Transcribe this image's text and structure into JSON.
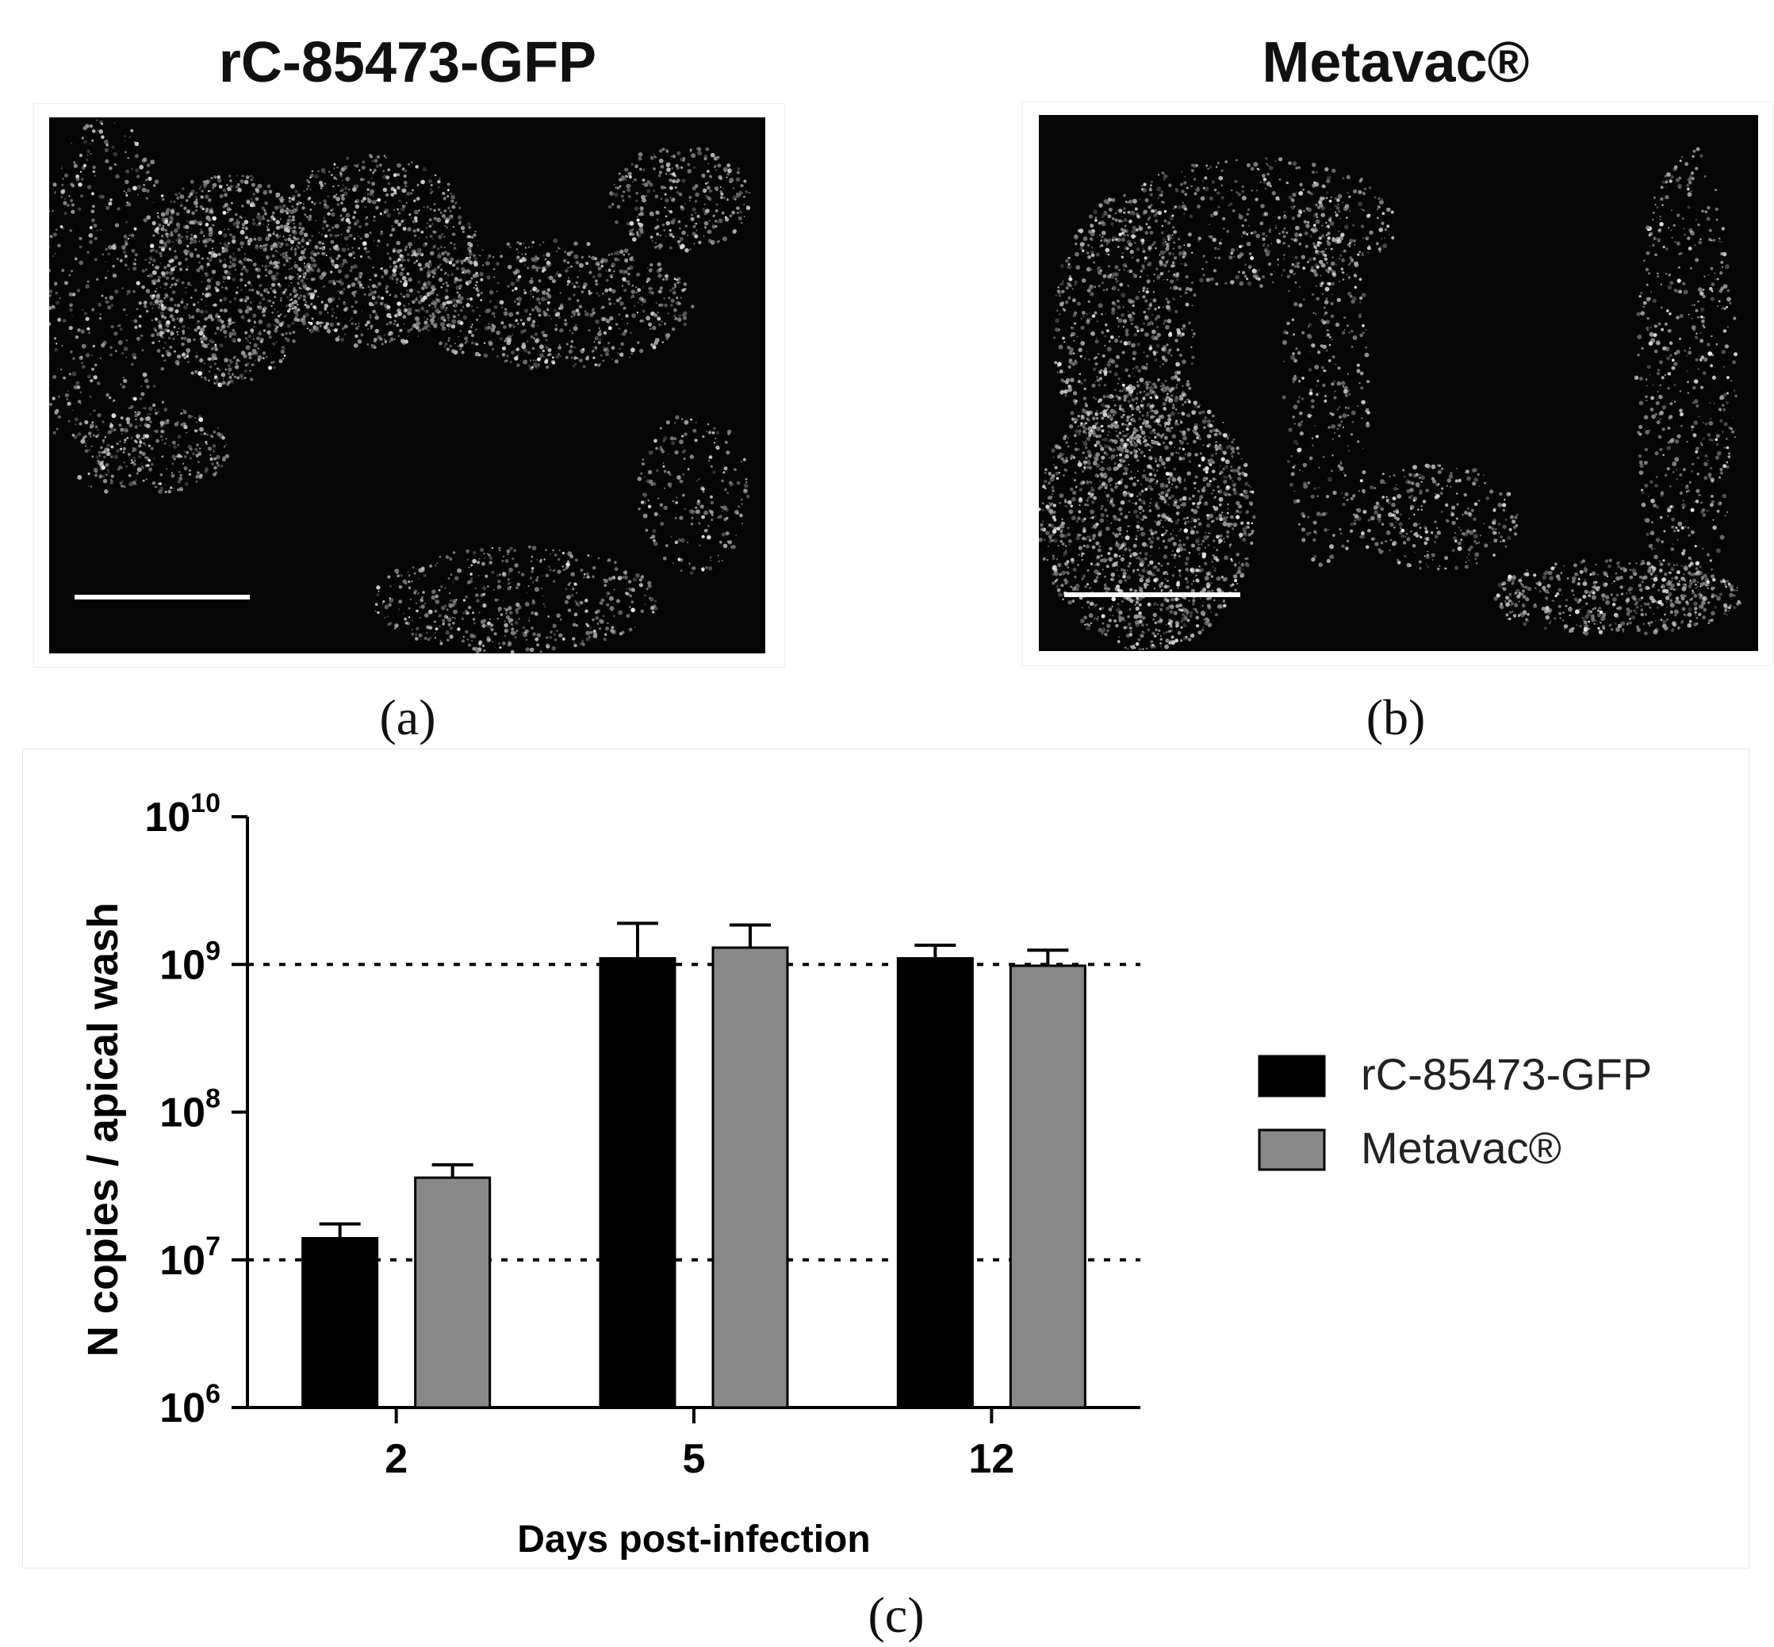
{
  "panels": {
    "a": {
      "title": "rC-85473-GFP",
      "letter": "(a)"
    },
    "b": {
      "title": "Metavac®",
      "letter": "(b)"
    },
    "c": {
      "letter": "(c)"
    }
  },
  "chart_data": {
    "type": "bar",
    "title": "",
    "xlabel": "Days post-infection",
    "ylabel": "N copies / apical wash",
    "y_scale": "log",
    "ylim": [
      1000000,
      10000000000
    ],
    "y_ticks": [
      {
        "value": 1000000,
        "base": "10",
        "exp": "6"
      },
      {
        "value": 10000000,
        "base": "10",
        "exp": "7"
      },
      {
        "value": 100000000,
        "base": "10",
        "exp": "8"
      },
      {
        "value": 1000000000,
        "base": "10",
        "exp": "9"
      },
      {
        "value": 10000000000,
        "base": "10",
        "exp": "10"
      }
    ],
    "categories": [
      "2",
      "5",
      "12"
    ],
    "series": [
      {
        "name": "rC-85473-GFP",
        "color": "#000000",
        "values": [
          14000000,
          1100000000,
          1100000000
        ],
        "error_upper": [
          17500000,
          1900000000,
          1350000000
        ]
      },
      {
        "name": "Metavac®",
        "color": "#888888",
        "values": [
          36000000,
          1300000000,
          980000000
        ],
        "error_upper": [
          44000000,
          1850000000,
          1250000000
        ]
      }
    ],
    "reference_lines": [
      10000000,
      1000000000
    ],
    "legend_position": "right",
    "grid": false
  }
}
